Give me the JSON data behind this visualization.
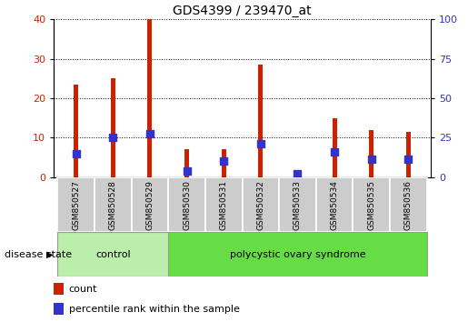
{
  "title": "GDS4399 / 239470_at",
  "samples": [
    "GSM850527",
    "GSM850528",
    "GSM850529",
    "GSM850530",
    "GSM850531",
    "GSM850532",
    "GSM850533",
    "GSM850534",
    "GSM850535",
    "GSM850536"
  ],
  "count_values": [
    23.5,
    25.0,
    40.0,
    7.0,
    7.0,
    28.5,
    1.5,
    15.0,
    12.0,
    11.5
  ],
  "percentile_scaled": [
    6.0,
    10.0,
    11.0,
    1.5,
    4.0,
    8.5,
    0.8,
    6.5,
    4.5,
    4.5
  ],
  "bar_color": "#cc2200",
  "percentile_color": "#3333cc",
  "control_color": "#bbeeaa",
  "pcos_color": "#66dd44",
  "tick_label_bg": "#cccccc",
  "ylim_left": [
    0,
    40
  ],
  "ylim_right": [
    0,
    100
  ],
  "yticks_left": [
    0,
    10,
    20,
    30,
    40
  ],
  "yticks_right": [
    0,
    25,
    50,
    75,
    100
  ],
  "legend_count_label": "count",
  "legend_percentile_label": "percentile rank within the sample",
  "disease_state_label": "disease state",
  "control_label": "control",
  "pcos_label": "polycystic ovary syndrome",
  "bar_width": 0.12,
  "percentile_marker_size": 5.0
}
